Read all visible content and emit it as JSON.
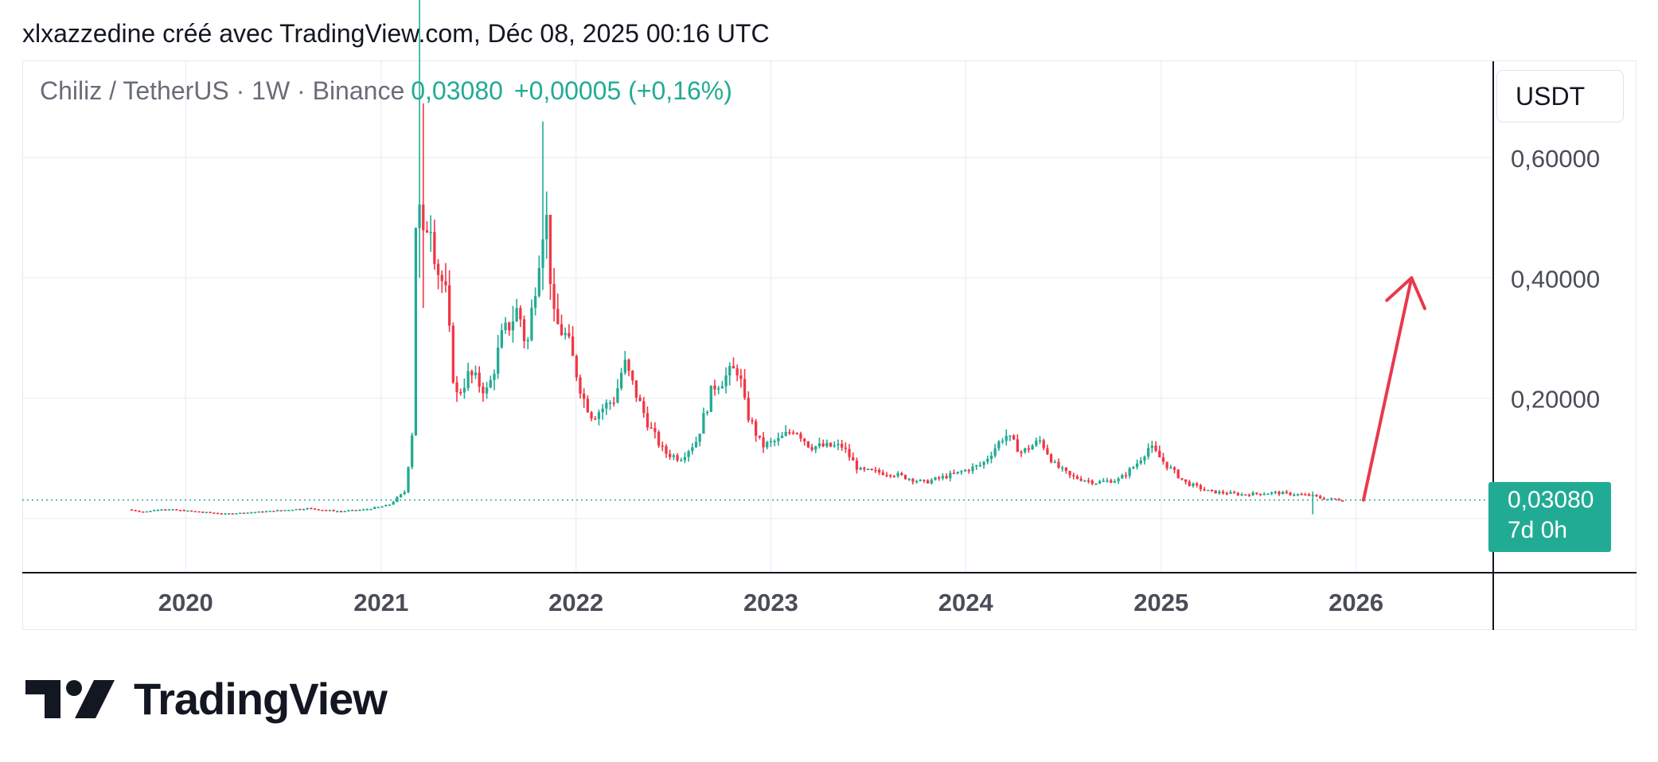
{
  "header": {
    "text": "xlxazzedine créé avec TradingView.com, Déc 08, 2025 00:16 UTC"
  },
  "legend": {
    "symbol": "Chiliz / TetherUS · 1W · Binance",
    "value": "0,03080",
    "change": "+0,00005 (+0,16%)"
  },
  "currency": "USDT",
  "price_tag": {
    "price": "0,03080",
    "countdown": "7d 0h"
  },
  "logo": {
    "text": "TradingView"
  },
  "colors": {
    "up": "#22ab94",
    "down": "#f23645",
    "arrow": "#e8394d",
    "grid": "#edf1f5",
    "axis_text": "#4a4d57"
  },
  "chart_data": {
    "type": "candlestick",
    "title": "Chiliz / TetherUS · 1W · Binance",
    "x_axis": {
      "ticks": [
        "2020",
        "2021",
        "2022",
        "2023",
        "2024",
        "2025",
        "2026"
      ],
      "range": [
        "2019-03-01",
        "2026-09-15"
      ]
    },
    "y_axis": {
      "ticks": [
        "0,20000",
        "0,40000",
        "0,60000"
      ],
      "tick_values": [
        0.2,
        0.4,
        0.6
      ],
      "range": [
        -0.09,
        0.76
      ],
      "unit": "USDT"
    },
    "last_price": 0.0308,
    "last_price_line": "dotted",
    "grid": true,
    "series": [
      {
        "price_path": [
          [
            "2019-09-15",
            0.015
          ],
          [
            "2019-10-15",
            0.011
          ],
          [
            "2019-11-15",
            0.016
          ],
          [
            "2020-01-01",
            0.013
          ],
          [
            "2020-03-15",
            0.008
          ],
          [
            "2020-06-01",
            0.012
          ],
          [
            "2020-08-15",
            0.017
          ],
          [
            "2020-10-15",
            0.012
          ],
          [
            "2020-12-01",
            0.015
          ],
          [
            "2021-01-15",
            0.022
          ],
          [
            "2021-02-15",
            0.045
          ],
          [
            "2021-03-01",
            0.15
          ],
          [
            "2021-03-08",
            0.55
          ],
          [
            "2021-03-15",
            0.5
          ],
          [
            "2021-03-22",
            0.45
          ],
          [
            "2021-04-01",
            0.52
          ],
          [
            "2021-04-15",
            0.42
          ],
          [
            "2021-05-01",
            0.38
          ],
          [
            "2021-05-20",
            0.2
          ],
          [
            "2021-06-15",
            0.24
          ],
          [
            "2021-07-20",
            0.21
          ],
          [
            "2021-08-15",
            0.3
          ],
          [
            "2021-09-15",
            0.35
          ],
          [
            "2021-10-01",
            0.28
          ],
          [
            "2021-10-25",
            0.45
          ],
          [
            "2021-11-05",
            0.52
          ],
          [
            "2021-11-20",
            0.33
          ],
          [
            "2021-12-15",
            0.3
          ],
          [
            "2022-01-15",
            0.2
          ],
          [
            "2022-02-01",
            0.17
          ],
          [
            "2022-03-15",
            0.2
          ],
          [
            "2022-04-01",
            0.26
          ],
          [
            "2022-05-01",
            0.19
          ],
          [
            "2022-05-20",
            0.15
          ],
          [
            "2022-06-15",
            0.11
          ],
          [
            "2022-07-15",
            0.1
          ],
          [
            "2022-08-15",
            0.13
          ],
          [
            "2022-09-15",
            0.22
          ],
          [
            "2022-10-15",
            0.24
          ],
          [
            "2022-11-01",
            0.25
          ],
          [
            "2022-11-15",
            0.18
          ],
          [
            "2022-12-15",
            0.12
          ],
          [
            "2023-01-15",
            0.13
          ],
          [
            "2023-02-15",
            0.15
          ],
          [
            "2023-03-15",
            0.12
          ],
          [
            "2023-05-15",
            0.12
          ],
          [
            "2023-06-15",
            0.08
          ],
          [
            "2023-08-15",
            0.075
          ],
          [
            "2023-10-15",
            0.06
          ],
          [
            "2023-12-15",
            0.075
          ],
          [
            "2024-02-01",
            0.09
          ],
          [
            "2024-03-15",
            0.14
          ],
          [
            "2024-04-15",
            0.11
          ],
          [
            "2024-05-20",
            0.13
          ],
          [
            "2024-06-15",
            0.09
          ],
          [
            "2024-07-15",
            0.07
          ],
          [
            "2024-09-01",
            0.06
          ],
          [
            "2024-10-15",
            0.065
          ],
          [
            "2024-11-15",
            0.09
          ],
          [
            "2024-12-10",
            0.12
          ],
          [
            "2025-01-10",
            0.09
          ],
          [
            "2025-02-15",
            0.06
          ],
          [
            "2025-04-01",
            0.045
          ],
          [
            "2025-06-01",
            0.04
          ],
          [
            "2025-08-01",
            0.043
          ],
          [
            "2025-09-15",
            0.04
          ],
          [
            "2025-10-10",
            0.038
          ],
          [
            "2025-11-01",
            0.033
          ],
          [
            "2025-12-08",
            0.0308
          ]
        ],
        "spikes": [
          {
            "date": "2021-03-15",
            "high": 0.92,
            "low": 0.4
          },
          {
            "date": "2021-03-22",
            "high": 0.69,
            "low": 0.35
          },
          {
            "date": "2021-11-01",
            "high": 0.66,
            "low": 0.38
          },
          {
            "date": "2025-10-10",
            "high": 0.045,
            "low": 0.007
          }
        ]
      }
    ],
    "annotation": {
      "type": "arrow",
      "from": [
        "2026-01-15",
        0.0308
      ],
      "to": [
        "2026-04-15",
        0.4
      ]
    }
  }
}
